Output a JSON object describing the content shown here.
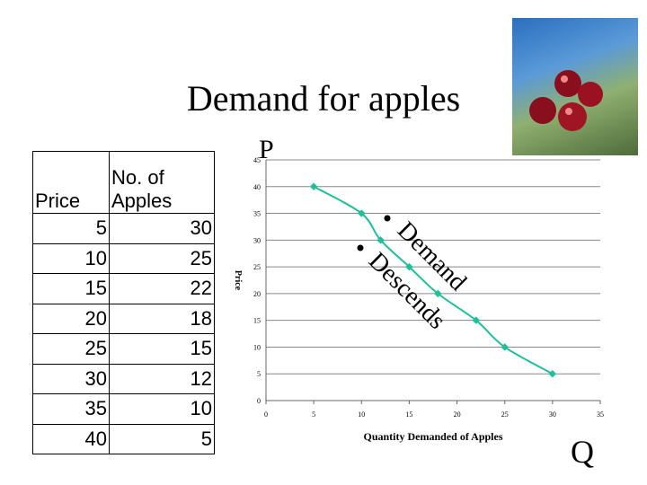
{
  "title": "Demand for apples",
  "photo": {
    "alt": "apples on tree"
  },
  "table": {
    "headers": [
      "Price",
      "No. of Apples"
    ],
    "rows": [
      [
        5,
        30
      ],
      [
        10,
        25
      ],
      [
        15,
        22
      ],
      [
        20,
        18
      ],
      [
        25,
        15
      ],
      [
        30,
        12
      ],
      [
        35,
        10
      ],
      [
        40,
        5
      ]
    ]
  },
  "annotations": {
    "p_label": "P",
    "q_label": "Q",
    "bullets": [
      "Demand",
      "Descends"
    ]
  },
  "chart_data": {
    "type": "line",
    "title": "",
    "xlabel": "Quantity Demanded of Apples",
    "ylabel": "Price",
    "x": [
      5,
      10,
      12,
      15,
      18,
      22,
      25,
      30
    ],
    "y": [
      40,
      35,
      30,
      25,
      20,
      15,
      10,
      5
    ],
    "xlim": [
      0,
      35
    ],
    "ylim": [
      0,
      45
    ],
    "xticks": [
      0,
      5,
      10,
      15,
      20,
      25,
      30,
      35
    ],
    "yticks": [
      0,
      5,
      10,
      15,
      20,
      25,
      30,
      35,
      40,
      45
    ],
    "grid": "horizontal",
    "line_color": "#1fbf9a",
    "smooth": true
  }
}
